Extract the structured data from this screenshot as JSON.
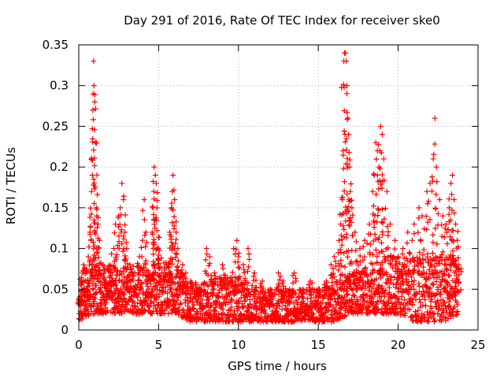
{
  "chart_data": {
    "type": "scatter",
    "title": "Day 291 of 2016, Rate Of TEC Index for receiver ske0",
    "xlabel": "GPS time / hours",
    "ylabel": "ROTI / TECUs",
    "xlim": [
      0,
      25
    ],
    "ylim": [
      0,
      0.35
    ],
    "xticks": [
      0,
      5,
      10,
      15,
      20,
      25
    ],
    "xtick_labels": [
      "0",
      "5",
      "10",
      "15",
      "20",
      "25"
    ],
    "yticks": [
      0,
      0.05,
      0.1,
      0.15,
      0.2,
      0.25,
      0.3,
      0.35
    ],
    "ytick_labels": [
      "0",
      "0.05",
      "0.1",
      "0.15",
      "0.2",
      "0.25",
      "0.3",
      "0.35"
    ],
    "grid": true,
    "marker": "+",
    "color": "#ff0000",
    "series": [
      {
        "name": "ROTI",
        "points": [
          [
            0.1,
            0.03
          ],
          [
            0.2,
            0.06
          ],
          [
            0.3,
            0.08
          ],
          [
            0.5,
            0.05
          ],
          [
            0.6,
            0.09
          ],
          [
            0.7,
            0.12
          ],
          [
            0.8,
            0.17
          ],
          [
            0.85,
            0.19
          ],
          [
            0.88,
            0.27
          ],
          [
            0.9,
            0.29
          ],
          [
            0.93,
            0.33
          ],
          [
            0.95,
            0.3
          ],
          [
            1.0,
            0.28
          ],
          [
            1.05,
            0.23
          ],
          [
            1.1,
            0.15
          ],
          [
            1.2,
            0.13
          ],
          [
            1.3,
            0.11
          ],
          [
            1.5,
            0.08
          ],
          [
            1.7,
            0.06
          ],
          [
            2.0,
            0.07
          ],
          [
            2.2,
            0.1
          ],
          [
            2.3,
            0.13
          ],
          [
            2.5,
            0.14
          ],
          [
            2.6,
            0.15
          ],
          [
            2.7,
            0.18
          ],
          [
            2.8,
            0.16
          ],
          [
            2.9,
            0.12
          ],
          [
            3.0,
            0.1
          ],
          [
            3.2,
            0.08
          ],
          [
            3.5,
            0.07
          ],
          [
            3.8,
            0.09
          ],
          [
            4.0,
            0.11
          ],
          [
            4.1,
            0.16
          ],
          [
            4.2,
            0.12
          ],
          [
            4.4,
            0.07
          ],
          [
            4.6,
            0.12
          ],
          [
            4.65,
            0.15
          ],
          [
            4.7,
            0.17
          ],
          [
            4.72,
            0.2
          ],
          [
            4.8,
            0.19
          ],
          [
            4.85,
            0.18
          ],
          [
            4.9,
            0.15
          ],
          [
            5.0,
            0.1
          ],
          [
            5.2,
            0.07
          ],
          [
            5.5,
            0.08
          ],
          [
            5.7,
            0.12
          ],
          [
            5.8,
            0.15
          ],
          [
            5.85,
            0.17
          ],
          [
            5.9,
            0.19
          ],
          [
            6.0,
            0.16
          ],
          [
            6.1,
            0.12
          ],
          [
            6.2,
            0.1
          ],
          [
            6.5,
            0.08
          ],
          [
            6.7,
            0.07
          ],
          [
            7.0,
            0.06
          ],
          [
            7.5,
            0.05
          ],
          [
            8.0,
            0.1
          ],
          [
            8.2,
            0.09
          ],
          [
            8.5,
            0.07
          ],
          [
            9.0,
            0.08
          ],
          [
            9.3,
            0.06
          ],
          [
            9.7,
            0.1
          ],
          [
            9.9,
            0.11
          ],
          [
            10.0,
            0.09
          ],
          [
            10.3,
            0.08
          ],
          [
            10.6,
            0.1
          ],
          [
            11.0,
            0.07
          ],
          [
            11.5,
            0.06
          ],
          [
            12.0,
            0.05
          ],
          [
            12.5,
            0.07
          ],
          [
            12.8,
            0.06
          ],
          [
            13.2,
            0.05
          ],
          [
            13.5,
            0.07
          ],
          [
            14.0,
            0.05
          ],
          [
            14.5,
            0.06
          ],
          [
            15.0,
            0.05
          ],
          [
            15.5,
            0.06
          ],
          [
            15.8,
            0.08
          ],
          [
            16.0,
            0.09
          ],
          [
            16.3,
            0.11
          ],
          [
            16.4,
            0.13
          ],
          [
            16.5,
            0.16
          ],
          [
            16.55,
            0.22
          ],
          [
            16.6,
            0.33
          ],
          [
            16.65,
            0.34
          ],
          [
            16.7,
            0.34
          ],
          [
            16.75,
            0.33
          ],
          [
            16.8,
            0.3
          ],
          [
            16.85,
            0.26
          ],
          [
            16.9,
            0.24
          ],
          [
            16.95,
            0.2
          ],
          [
            17.0,
            0.17
          ],
          [
            17.1,
            0.15
          ],
          [
            17.3,
            0.12
          ],
          [
            17.6,
            0.1
          ],
          [
            17.9,
            0.11
          ],
          [
            18.2,
            0.13
          ],
          [
            18.4,
            0.17
          ],
          [
            18.5,
            0.19
          ],
          [
            18.6,
            0.23
          ],
          [
            18.7,
            0.22
          ],
          [
            18.8,
            0.2
          ],
          [
            18.85,
            0.22
          ],
          [
            18.9,
            0.25
          ],
          [
            19.0,
            0.24
          ],
          [
            19.1,
            0.21
          ],
          [
            19.3,
            0.17
          ],
          [
            19.5,
            0.13
          ],
          [
            19.8,
            0.11
          ],
          [
            20.0,
            0.09
          ],
          [
            20.3,
            0.1
          ],
          [
            20.6,
            0.12
          ],
          [
            21.0,
            0.13
          ],
          [
            21.3,
            0.15
          ],
          [
            21.5,
            0.14
          ],
          [
            21.8,
            0.17
          ],
          [
            22.0,
            0.18
          ],
          [
            22.2,
            0.21
          ],
          [
            22.3,
            0.26
          ],
          [
            22.4,
            0.2
          ],
          [
            22.6,
            0.16
          ],
          [
            22.8,
            0.14
          ],
          [
            23.0,
            0.13
          ],
          [
            23.2,
            0.15
          ],
          [
            23.3,
            0.18
          ],
          [
            23.4,
            0.19
          ],
          [
            23.5,
            0.16
          ],
          [
            23.6,
            0.13
          ],
          [
            23.7,
            0.11
          ],
          [
            23.8,
            0.08
          ]
        ],
        "background_band": [
          [
            0,
            0.01,
            0.07
          ],
          [
            1,
            0.02,
            0.09
          ],
          [
            2,
            0.02,
            0.08
          ],
          [
            3,
            0.02,
            0.08
          ],
          [
            4,
            0.02,
            0.08
          ],
          [
            5,
            0.02,
            0.09
          ],
          [
            6,
            0.02,
            0.08
          ],
          [
            7,
            0.01,
            0.06
          ],
          [
            8,
            0.01,
            0.06
          ],
          [
            9,
            0.01,
            0.07
          ],
          [
            10,
            0.01,
            0.06
          ],
          [
            11,
            0.01,
            0.05
          ],
          [
            12,
            0.01,
            0.05
          ],
          [
            13,
            0.01,
            0.05
          ],
          [
            14,
            0.01,
            0.05
          ],
          [
            15,
            0.01,
            0.05
          ],
          [
            16,
            0.01,
            0.06
          ],
          [
            17,
            0.02,
            0.07
          ],
          [
            18,
            0.02,
            0.08
          ],
          [
            19,
            0.02,
            0.09
          ],
          [
            20,
            0.02,
            0.09
          ],
          [
            21,
            0.01,
            0.09
          ],
          [
            22,
            0.01,
            0.09
          ],
          [
            23,
            0.01,
            0.09
          ],
          [
            23.8,
            0.02,
            0.08
          ]
        ]
      }
    ]
  }
}
